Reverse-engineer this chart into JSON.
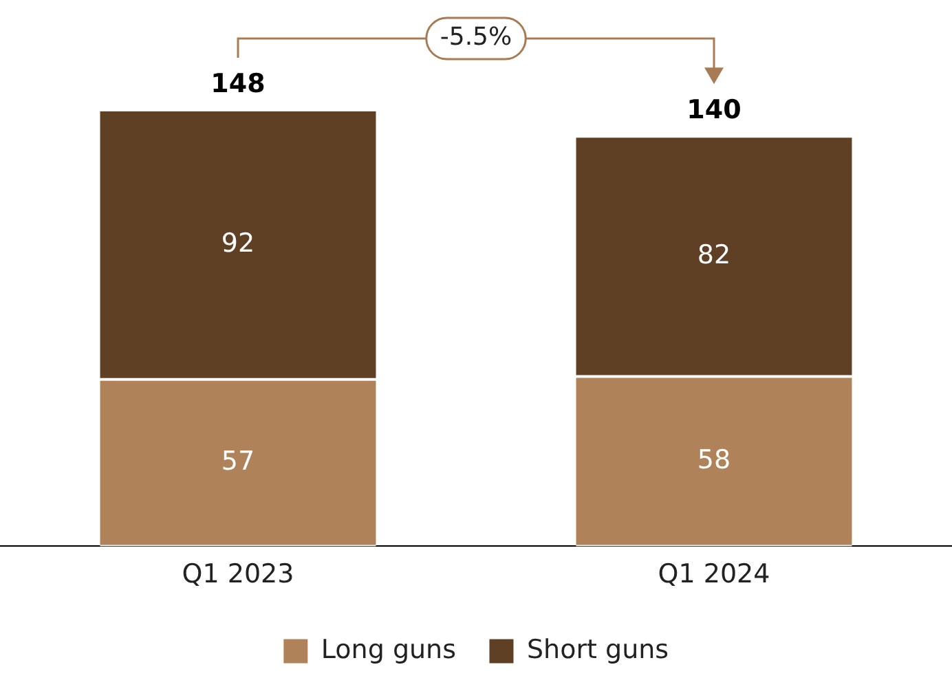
{
  "chart_data": {
    "type": "bar",
    "stacked": true,
    "categories": [
      "Q1 2023",
      "Q1 2024"
    ],
    "series": [
      {
        "name": "Long guns",
        "color": "#b08259",
        "values": [
          57,
          58
        ]
      },
      {
        "name": "Short guns",
        "color": "#5f4025",
        "values": [
          92,
          82
        ]
      }
    ],
    "totals": [
      "148",
      "140"
    ],
    "data_labels": true,
    "legend": "bottom",
    "grid": false,
    "tick_labels": "x",
    "annotations": [
      "-5.5%"
    ]
  }
}
